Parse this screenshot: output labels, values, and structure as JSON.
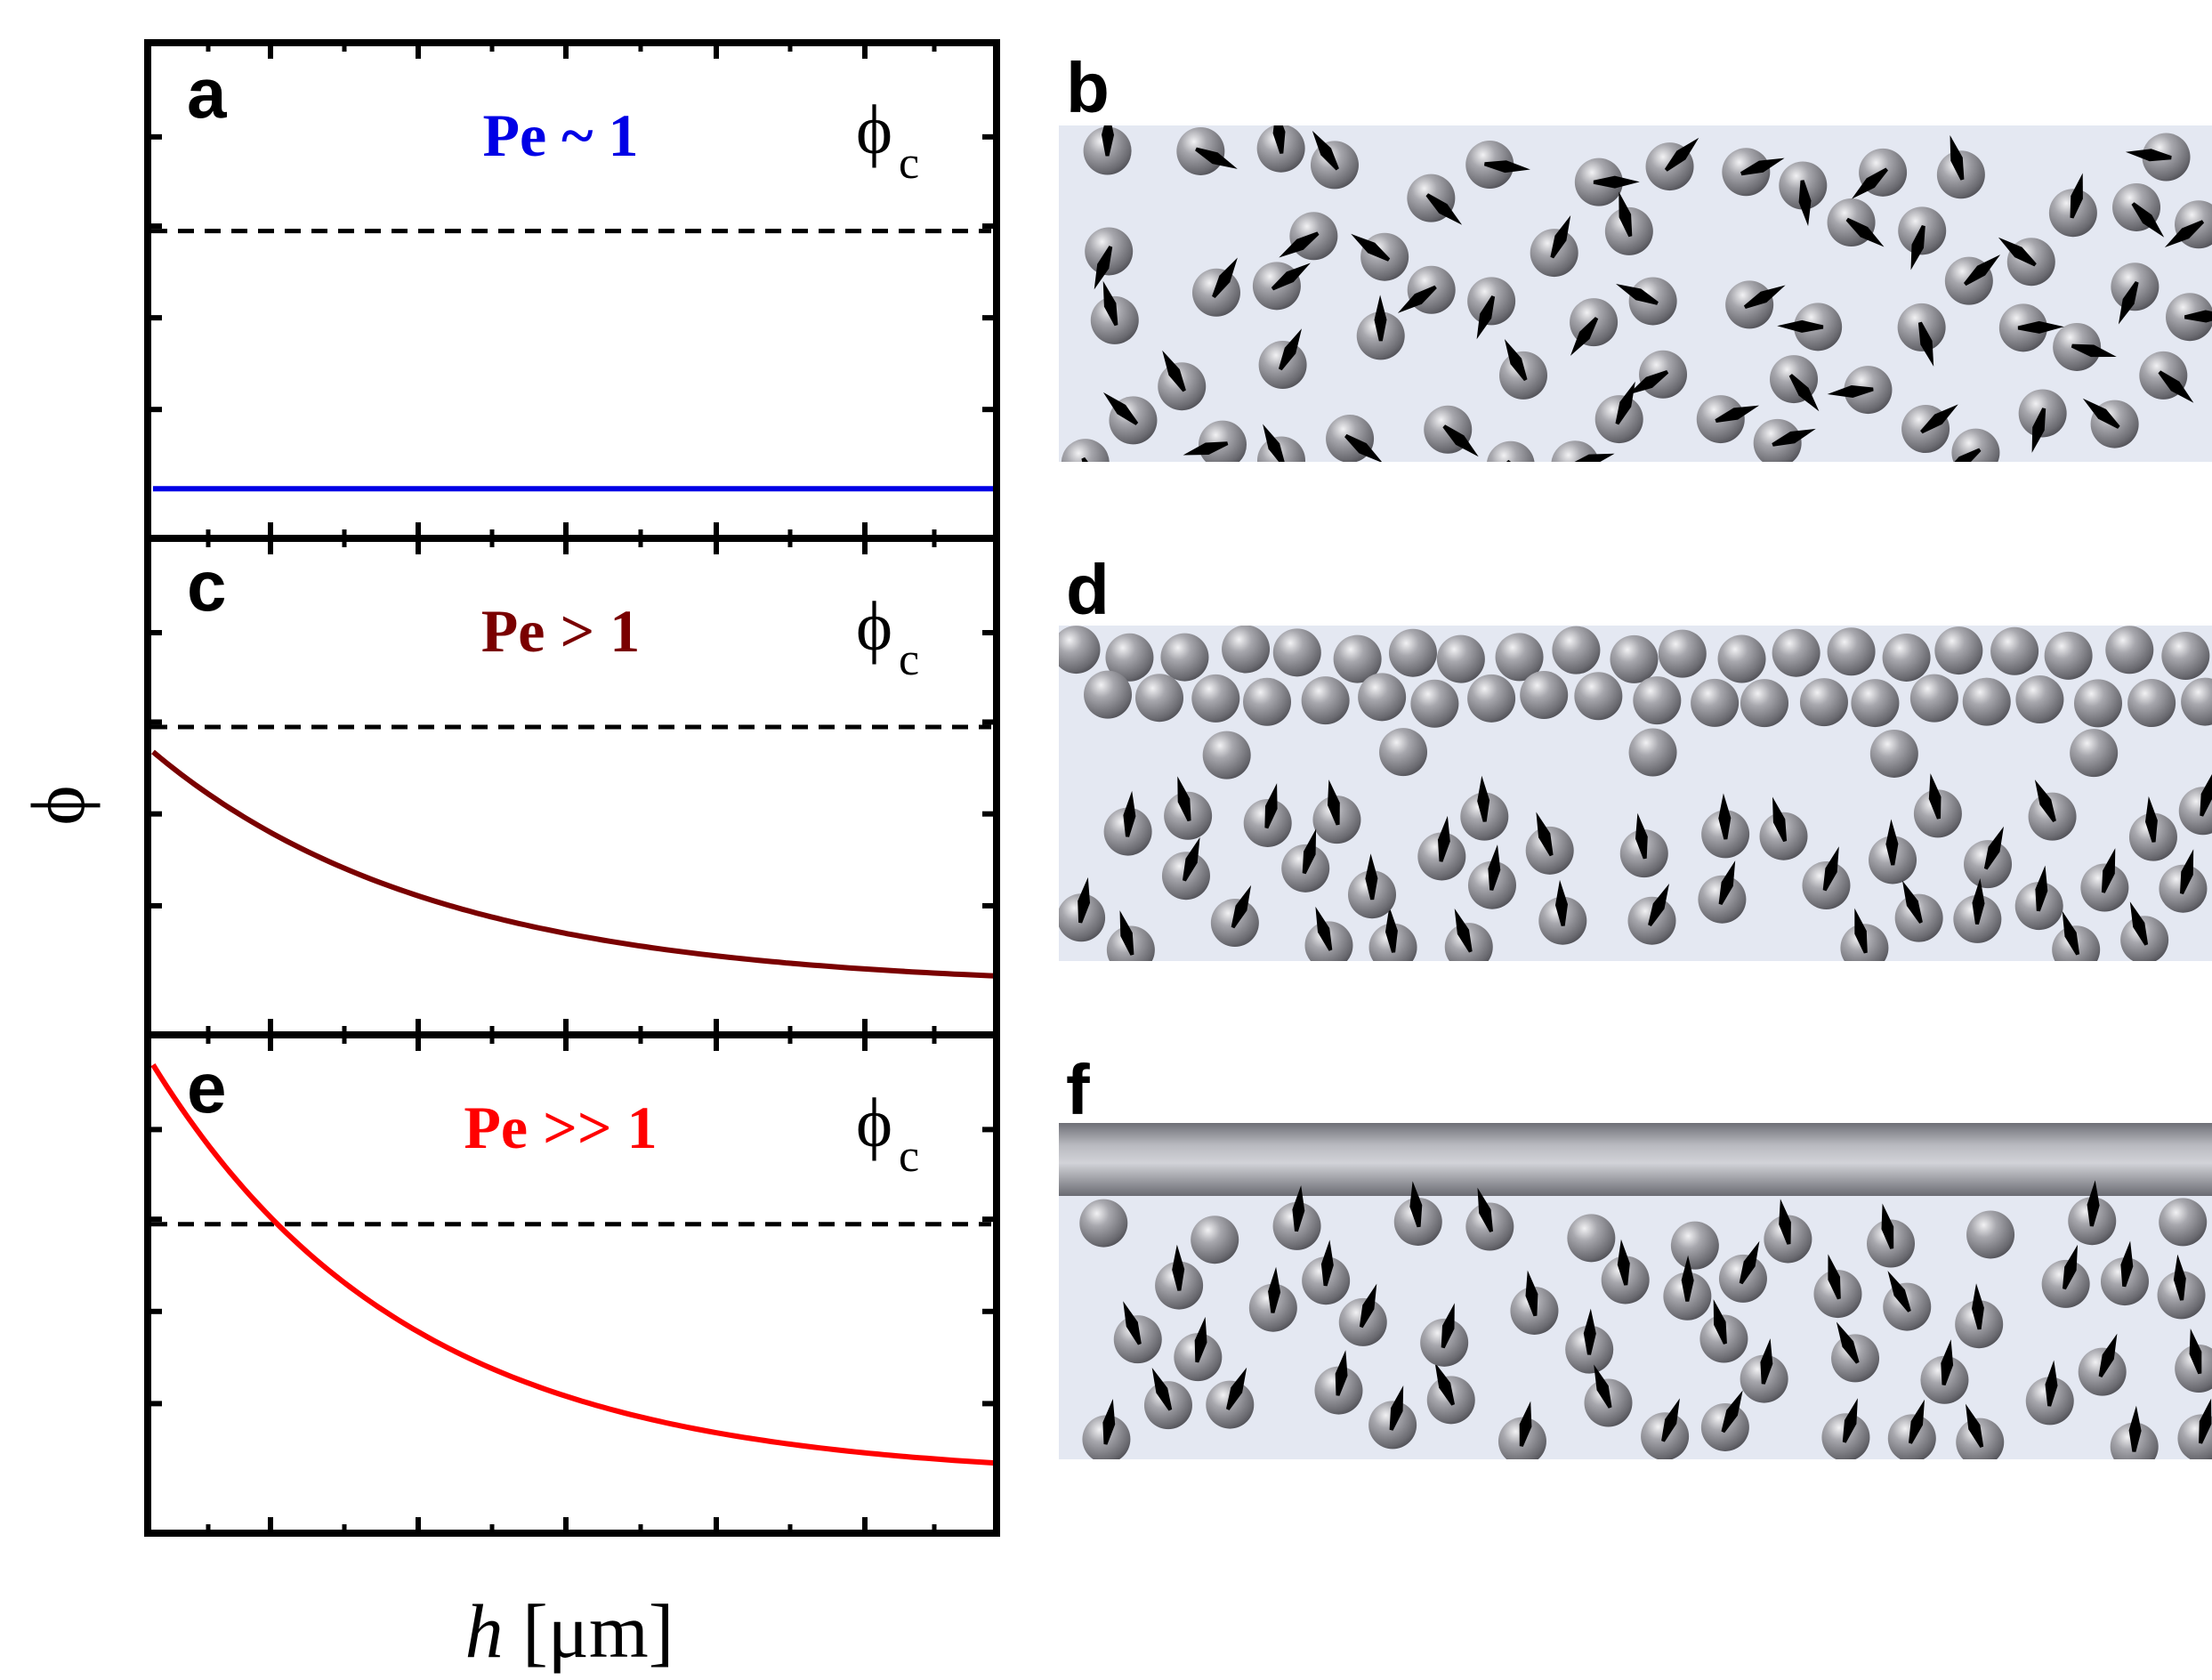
{
  "plot_panels": [
    {
      "letter": "a",
      "pe_label": "Pe ~ 1",
      "pe_color": "#0000e6",
      "curve_color": "#0000e6",
      "threshold_label": "ϕ",
      "threshold_sub": "c",
      "phi_c_value": 0.62,
      "profile": {
        "type": "flat",
        "value": 0.1
      }
    },
    {
      "letter": "c",
      "pe_label": "Pe > 1",
      "pe_color": "#7a0000",
      "curve_color": "#7a0000",
      "threshold_label": "ϕ",
      "threshold_sub": "c",
      "phi_c_value": 0.62,
      "profile": {
        "type": "decay",
        "start": 0.57,
        "end": 0.095,
        "rate": 3.0
      }
    },
    {
      "letter": "e",
      "pe_label": "Pe >> 1",
      "pe_color": "#ff0000",
      "curve_color": "#ff0000",
      "threshold_label": "ϕ",
      "threshold_sub": "c",
      "phi_c_value": 0.62,
      "profile": {
        "type": "decay",
        "start": 0.94,
        "end": 0.11,
        "rate": 3.3
      }
    }
  ],
  "axes": {
    "y_label": "ϕ",
    "x_label_italic": "h",
    "x_label_unit": " [μm]"
  },
  "schematic_panels": [
    {
      "letter": "b",
      "state": "homogeneous"
    },
    {
      "letter": "d",
      "state": "dense packed layer at top"
    },
    {
      "letter": "f",
      "state": "solid wall at top"
    }
  ],
  "colors": {
    "fluid_background": "#e4e8f2",
    "particle": "#7e7e84",
    "arrow": "#000000",
    "wall": "#8a8b92",
    "threshold_line": "#000000"
  }
}
